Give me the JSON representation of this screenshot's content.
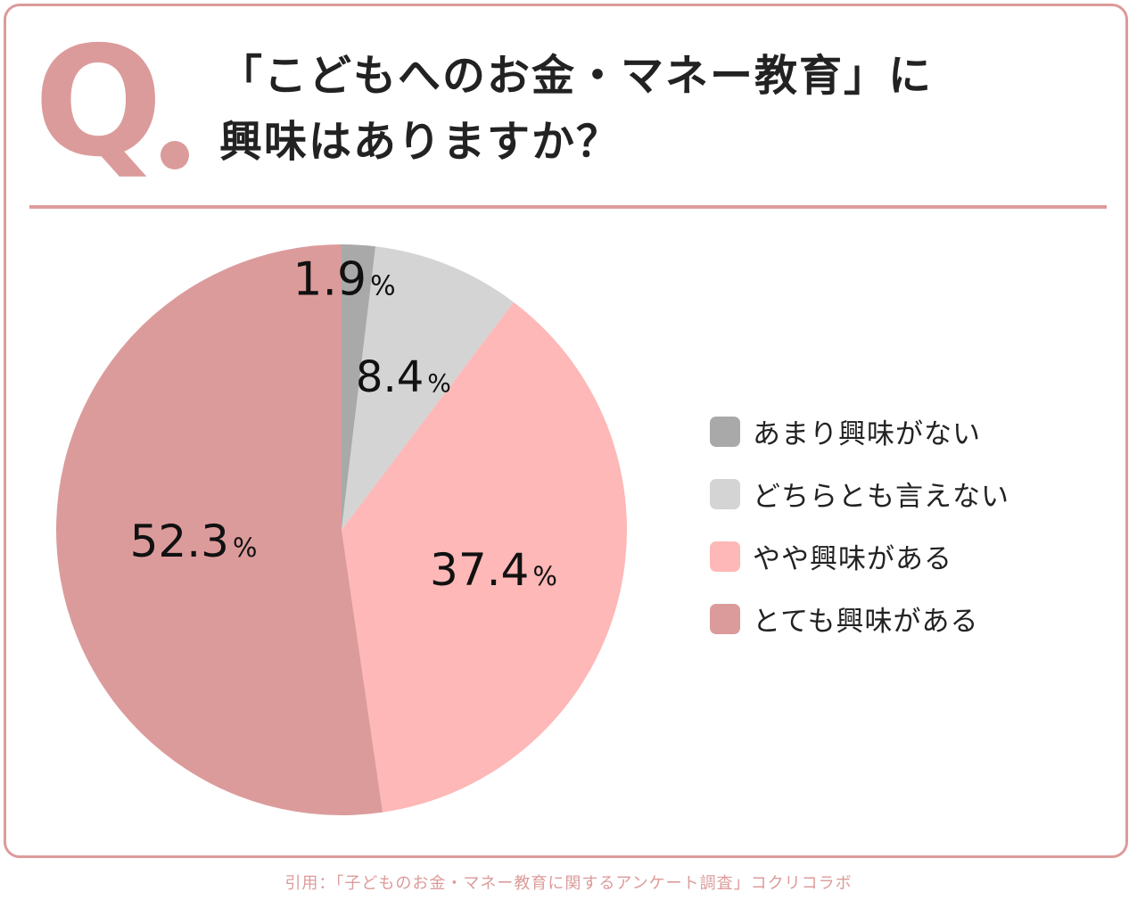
{
  "title": {
    "mark": "Q",
    "line1": "「こどもへのお金・マネー教育」に",
    "line2": "興味はありますか？"
  },
  "chart_data": {
    "type": "pie",
    "unit": "%",
    "categories": [
      "あまり興味がない",
      "どちらとも言えない",
      "やや興味がある",
      "とても興味がある"
    ],
    "values": [
      1.9,
      8.4,
      37.4,
      52.3
    ],
    "value_labels": [
      "1.9",
      "8.4",
      "37.4",
      "52.3"
    ],
    "colors": [
      "#a9a9a9",
      "#d4d4d4",
      "#fdb8b7",
      "#dc9b9b"
    ],
    "start_angle_deg": 0,
    "direction": "clockwise",
    "legend_position": "right"
  },
  "legend": [
    {
      "label": "あまり興味がない",
      "color": "#a9a9a9"
    },
    {
      "label": "どちらとも言えない",
      "color": "#d4d4d4"
    },
    {
      "label": "やや興味がある",
      "color": "#fdb8b7"
    },
    {
      "label": "とても興味がある",
      "color": "#dc9b9b"
    }
  ],
  "footer": "引用：「子どものお金・マネー教育に関するアンケート調査」コクリコラボ",
  "accent_color": "#dc9b9b"
}
